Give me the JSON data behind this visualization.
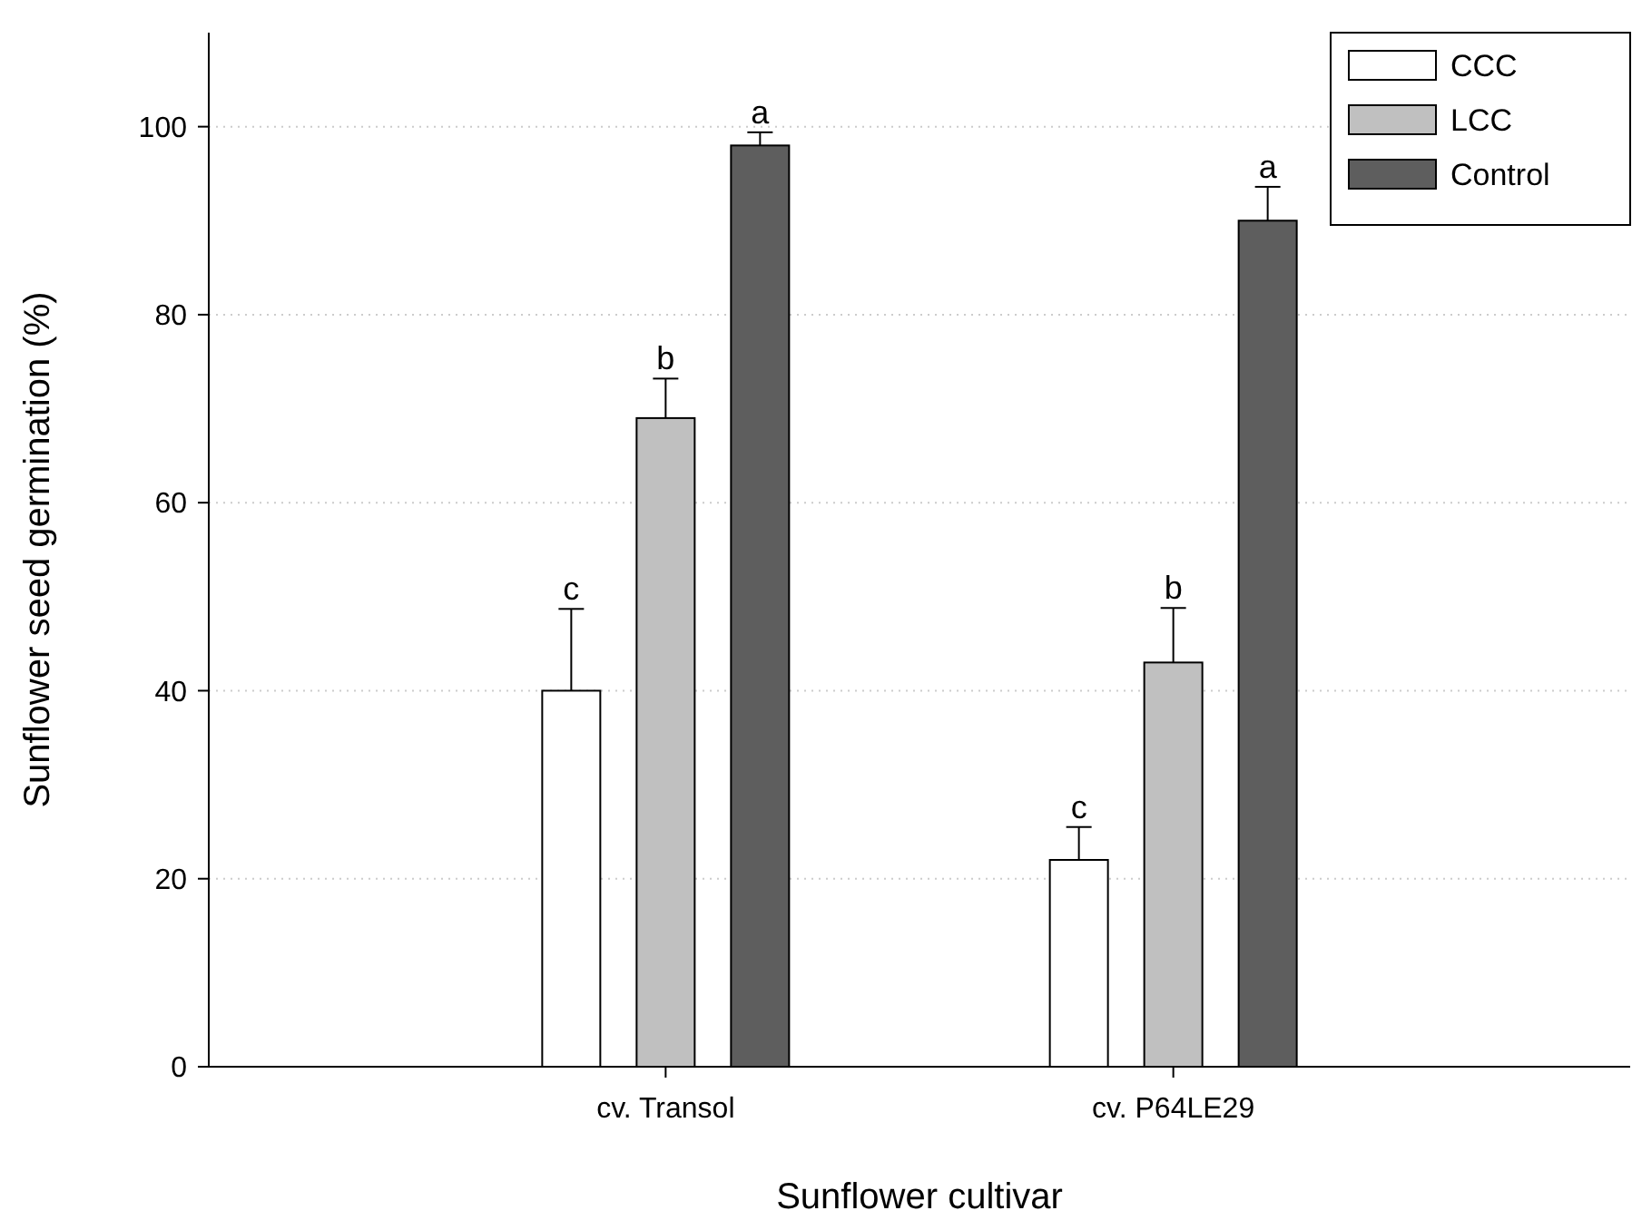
{
  "chart_data": {
    "type": "bar",
    "xlabel": "Sunflower cultivar",
    "ylabel": "Sunflower seed germination (%)",
    "categories": [
      "cv. Transol",
      "cv. P64LE29"
    ],
    "series": [
      {
        "name": "CCC",
        "color": "#ffffff",
        "values": [
          40,
          22
        ],
        "errors": [
          [
            40,
            48.7
          ],
          [
            22,
            25.5
          ]
        ]
      },
      {
        "name": "LCC",
        "color": "#c0c0c0",
        "values": [
          69,
          43
        ],
        "errors": [
          [
            69,
            73.2
          ],
          [
            43,
            48.8
          ]
        ]
      },
      {
        "name": "Control",
        "color": "#5e5e5e",
        "values": [
          98,
          90
        ],
        "errors": [
          [
            98,
            99.4
          ],
          [
            90,
            93.6
          ]
        ]
      }
    ],
    "ylim": [
      0,
      110
    ],
    "yticks": [
      0,
      20,
      40,
      60,
      80,
      100
    ],
    "grid": "y",
    "legend": "top right",
    "annotations": [
      "c",
      "b",
      "a",
      "c",
      "b",
      "a"
    ]
  }
}
